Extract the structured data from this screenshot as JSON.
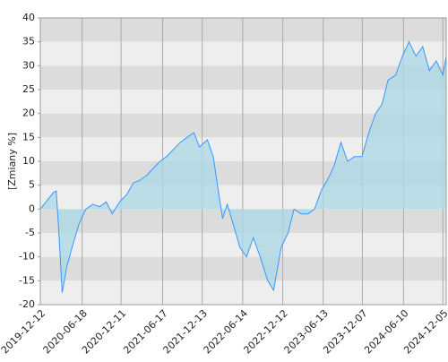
{
  "chart_data": {
    "type": "line",
    "y_label": "[Zmiany %]",
    "x": [
      "2019-12-12",
      "2020-01-15",
      "2020-02-10",
      "2020-02-22",
      "2020-03-05",
      "2020-03-20",
      "2020-04-10",
      "2020-05-10",
      "2020-06-05",
      "2020-07-05",
      "2020-08-05",
      "2020-09-05",
      "2020-10-05",
      "2020-11-01",
      "2020-12-05",
      "2021-01-05",
      "2021-02-05",
      "2021-03-05",
      "2021-04-05",
      "2021-05-05",
      "2021-06-05",
      "2021-07-05",
      "2021-08-05",
      "2021-09-05",
      "2021-10-05",
      "2021-11-05",
      "2021-12-01",
      "2022-01-05",
      "2022-02-01",
      "2022-02-20",
      "2022-03-15",
      "2022-04-05",
      "2022-05-01",
      "2022-06-01",
      "2022-07-01",
      "2022-08-01",
      "2022-09-01",
      "2022-10-05",
      "2022-11-01",
      "2022-12-05",
      "2023-01-05",
      "2023-02-01",
      "2023-03-05",
      "2023-04-05",
      "2023-05-05",
      "2023-06-05",
      "2023-07-01",
      "2023-08-01",
      "2023-09-01",
      "2023-10-01",
      "2023-11-01",
      "2023-12-05",
      "2024-01-05",
      "2024-02-05",
      "2024-03-05",
      "2024-04-01",
      "2024-05-05",
      "2024-06-05",
      "2024-07-05",
      "2024-08-05",
      "2024-09-05",
      "2024-10-05",
      "2024-11-05",
      "2024-12-05",
      "2024-12-20"
    ],
    "series": [
      {
        "color": "#3399ff",
        "fill": "#add8e6",
        "values": [
          0,
          2,
          3.5,
          3.8,
          -5,
          -17.5,
          -12,
          -7,
          -3,
          0,
          1,
          0.5,
          1.5,
          -1,
          1.5,
          3,
          5.5,
          6,
          7,
          8.5,
          10,
          11,
          12.5,
          14,
          15,
          16,
          13,
          14.5,
          11,
          5,
          -2,
          1,
          -3,
          -8,
          -10,
          -6,
          -10,
          -15,
          -17,
          -8,
          -5,
          0,
          -1,
          -1,
          0,
          4,
          6,
          9,
          14,
          10,
          11,
          11,
          16,
          20,
          22,
          27,
          28,
          32,
          35,
          32,
          34,
          29,
          31,
          28,
          32
        ]
      }
    ],
    "xlim": [
      "2019-12-12",
      "2024-12-20"
    ],
    "xticks": [
      "2019-12-12",
      "2020-06-18",
      "2020-12-11",
      "2021-06-17",
      "2021-12-13",
      "2022-06-14",
      "2022-12-12",
      "2023-06-13",
      "2023-12-07",
      "2024-06-10",
      "2024-12-05"
    ],
    "ylim": [
      -20,
      40
    ],
    "yticks": [
      -20,
      -15,
      -10,
      -5,
      0,
      5,
      10,
      15,
      20,
      25,
      30,
      35,
      40
    ],
    "bands": true,
    "grid": true
  }
}
